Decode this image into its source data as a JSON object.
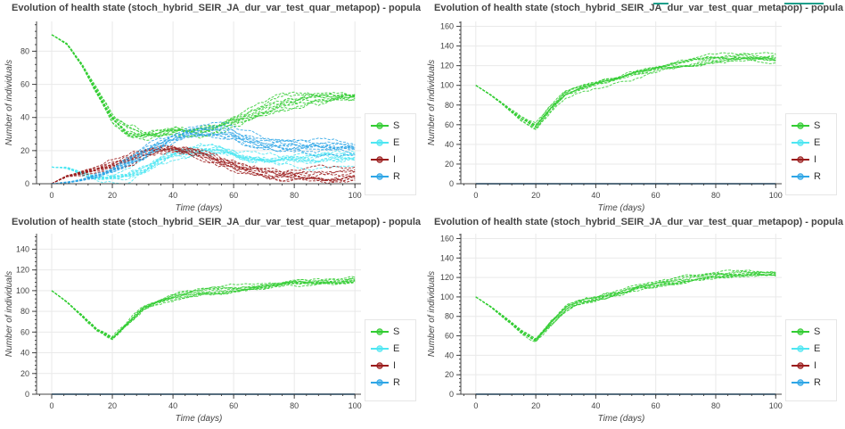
{
  "colors": {
    "S": "#33cc33",
    "E": "#4ee6f2",
    "I": "#9b1c1c",
    "R": "#2fa6e6",
    "grid": "#e9e9e9",
    "axis": "#444444"
  },
  "chart_data": [
    {
      "type": "line",
      "title": "Evolution of health state (stoch_hybrid_SEIR_JA_dur_var_test_quar_metapop) - popula",
      "xlabel": "Time (days)",
      "ylabel": "Number of individuals",
      "xlim": [
        -5,
        102
      ],
      "ylim": [
        0,
        98
      ],
      "xticks": [
        0,
        20,
        40,
        60,
        80,
        100
      ],
      "yticks": [
        0,
        20,
        40,
        60,
        80
      ],
      "legend": [
        "S",
        "E",
        "I",
        "R"
      ],
      "legend_position": "right",
      "runs": 10,
      "series": [
        {
          "name": "S",
          "x": [
            0,
            5,
            10,
            15,
            20,
            25,
            30,
            35,
            40,
            45,
            50,
            55,
            60,
            65,
            70,
            75,
            80,
            85,
            90,
            95,
            100
          ],
          "values": [
            90,
            85,
            73,
            58,
            43,
            36,
            34,
            35,
            37,
            37,
            38,
            40,
            44,
            48,
            52,
            55,
            57,
            59,
            60,
            61,
            62
          ]
        },
        {
          "name": "E",
          "x": [
            0,
            5,
            10,
            15,
            20,
            25,
            30,
            35,
            40,
            45,
            50,
            55,
            60,
            65,
            70,
            75,
            80,
            85,
            90,
            95,
            100
          ],
          "values": [
            10,
            10,
            7,
            5,
            6,
            8,
            12,
            18,
            22,
            24,
            26,
            26,
            24,
            22,
            21,
            21,
            21,
            21,
            22,
            22,
            23
          ]
        },
        {
          "name": "I",
          "x": [
            0,
            5,
            10,
            15,
            20,
            25,
            30,
            35,
            40,
            45,
            50,
            55,
            60,
            65,
            70,
            75,
            80,
            85,
            90,
            95,
            100
          ],
          "values": [
            0,
            5,
            7,
            9,
            12,
            16,
            20,
            23,
            24,
            22,
            20,
            17,
            15,
            13,
            12,
            11,
            11,
            11,
            11,
            11,
            11
          ]
        },
        {
          "name": "R",
          "x": [
            0,
            5,
            10,
            15,
            20,
            25,
            30,
            35,
            40,
            45,
            50,
            55,
            60,
            65,
            70,
            75,
            80,
            85,
            90,
            95,
            100
          ],
          "values": [
            0,
            1,
            3,
            6,
            10,
            15,
            20,
            25,
            29,
            32,
            33,
            33,
            32,
            30,
            28,
            27,
            27,
            27,
            27,
            27,
            27
          ]
        }
      ]
    },
    {
      "type": "line",
      "title": "Evolution of health state (stoch_hybrid_SEIR_JA_dur_var_test_quar_metapop) - popula",
      "xlabel": "Time (days)",
      "ylabel": "Number of individuals",
      "xlim": [
        -5,
        102
      ],
      "ylim": [
        0,
        165
      ],
      "xticks": [
        0,
        20,
        40,
        60,
        80,
        100
      ],
      "yticks": [
        0,
        20,
        40,
        60,
        80,
        100,
        120,
        140,
        160
      ],
      "legend": [
        "S",
        "E",
        "I",
        "R"
      ],
      "legend_position": "right",
      "runs": 10,
      "series": [
        {
          "name": "S",
          "x": [
            0,
            5,
            10,
            15,
            20,
            25,
            30,
            35,
            40,
            45,
            50,
            55,
            60,
            65,
            70,
            75,
            80,
            85,
            90,
            95,
            100
          ],
          "values": [
            100,
            90,
            78,
            66,
            57,
            75,
            90,
            96,
            100,
            104,
            108,
            112,
            115,
            117,
            119,
            121,
            123,
            124,
            125,
            124,
            124
          ]
        },
        {
          "name": "E",
          "x": [
            0,
            100
          ],
          "values": [
            0,
            0
          ]
        },
        {
          "name": "I",
          "x": [
            0,
            100
          ],
          "values": [
            0,
            0
          ]
        },
        {
          "name": "R",
          "x": [
            0,
            100
          ],
          "values": [
            0,
            0
          ]
        }
      ]
    },
    {
      "type": "line",
      "title": "Evolution of health state (stoch_hybrid_SEIR_JA_dur_var_test_quar_metapop) - popula",
      "xlabel": "Time (days)",
      "ylabel": "Number of individuals",
      "xlim": [
        -5,
        102
      ],
      "ylim": [
        0,
        155
      ],
      "xticks": [
        0,
        20,
        40,
        60,
        80,
        100
      ],
      "yticks": [
        0,
        20,
        40,
        60,
        80,
        100,
        120,
        140
      ],
      "legend": [
        "S",
        "E",
        "I",
        "R"
      ],
      "legend_position": "right",
      "runs": 10,
      "series": [
        {
          "name": "S",
          "x": [
            0,
            5,
            10,
            15,
            20,
            25,
            30,
            35,
            40,
            45,
            50,
            55,
            60,
            65,
            70,
            75,
            80,
            85,
            90,
            95,
            100
          ],
          "values": [
            100,
            90,
            78,
            66,
            59,
            75,
            90,
            97,
            102,
            106,
            109,
            111,
            113,
            115,
            117,
            119,
            121,
            122,
            123,
            124,
            126
          ]
        },
        {
          "name": "E",
          "x": [
            0,
            100
          ],
          "values": [
            0,
            0
          ]
        },
        {
          "name": "I",
          "x": [
            0,
            100
          ],
          "values": [
            0,
            0
          ]
        },
        {
          "name": "R",
          "x": [
            0,
            100
          ],
          "values": [
            0,
            0
          ]
        }
      ]
    },
    {
      "type": "line",
      "title": "Evolution of health state (stoch_hybrid_SEIR_JA_dur_var_test_quar_metapop) - popula",
      "xlabel": "Time (days)",
      "ylabel": "Number of individuals",
      "xlim": [
        -5,
        102
      ],
      "ylim": [
        0,
        165
      ],
      "xticks": [
        0,
        20,
        40,
        60,
        80,
        100
      ],
      "yticks": [
        0,
        20,
        40,
        60,
        80,
        100,
        120,
        140,
        160
      ],
      "legend": [
        "S",
        "E",
        "I",
        "R"
      ],
      "legend_position": "right",
      "runs": 10,
      "series": [
        {
          "name": "S",
          "x": [
            0,
            5,
            10,
            15,
            20,
            25,
            30,
            35,
            40,
            45,
            50,
            55,
            60,
            65,
            70,
            75,
            80,
            85,
            90,
            95,
            100
          ],
          "values": [
            100,
            90,
            78,
            65,
            57,
            75,
            90,
            97,
            100,
            104,
            108,
            112,
            114,
            116,
            119,
            121,
            123,
            124,
            125,
            125,
            125
          ]
        },
        {
          "name": "E",
          "x": [
            0,
            100
          ],
          "values": [
            0,
            0
          ]
        },
        {
          "name": "I",
          "x": [
            0,
            100
          ],
          "values": [
            0,
            0
          ]
        },
        {
          "name": "R",
          "x": [
            0,
            100
          ],
          "values": [
            0,
            0
          ]
        }
      ]
    }
  ]
}
